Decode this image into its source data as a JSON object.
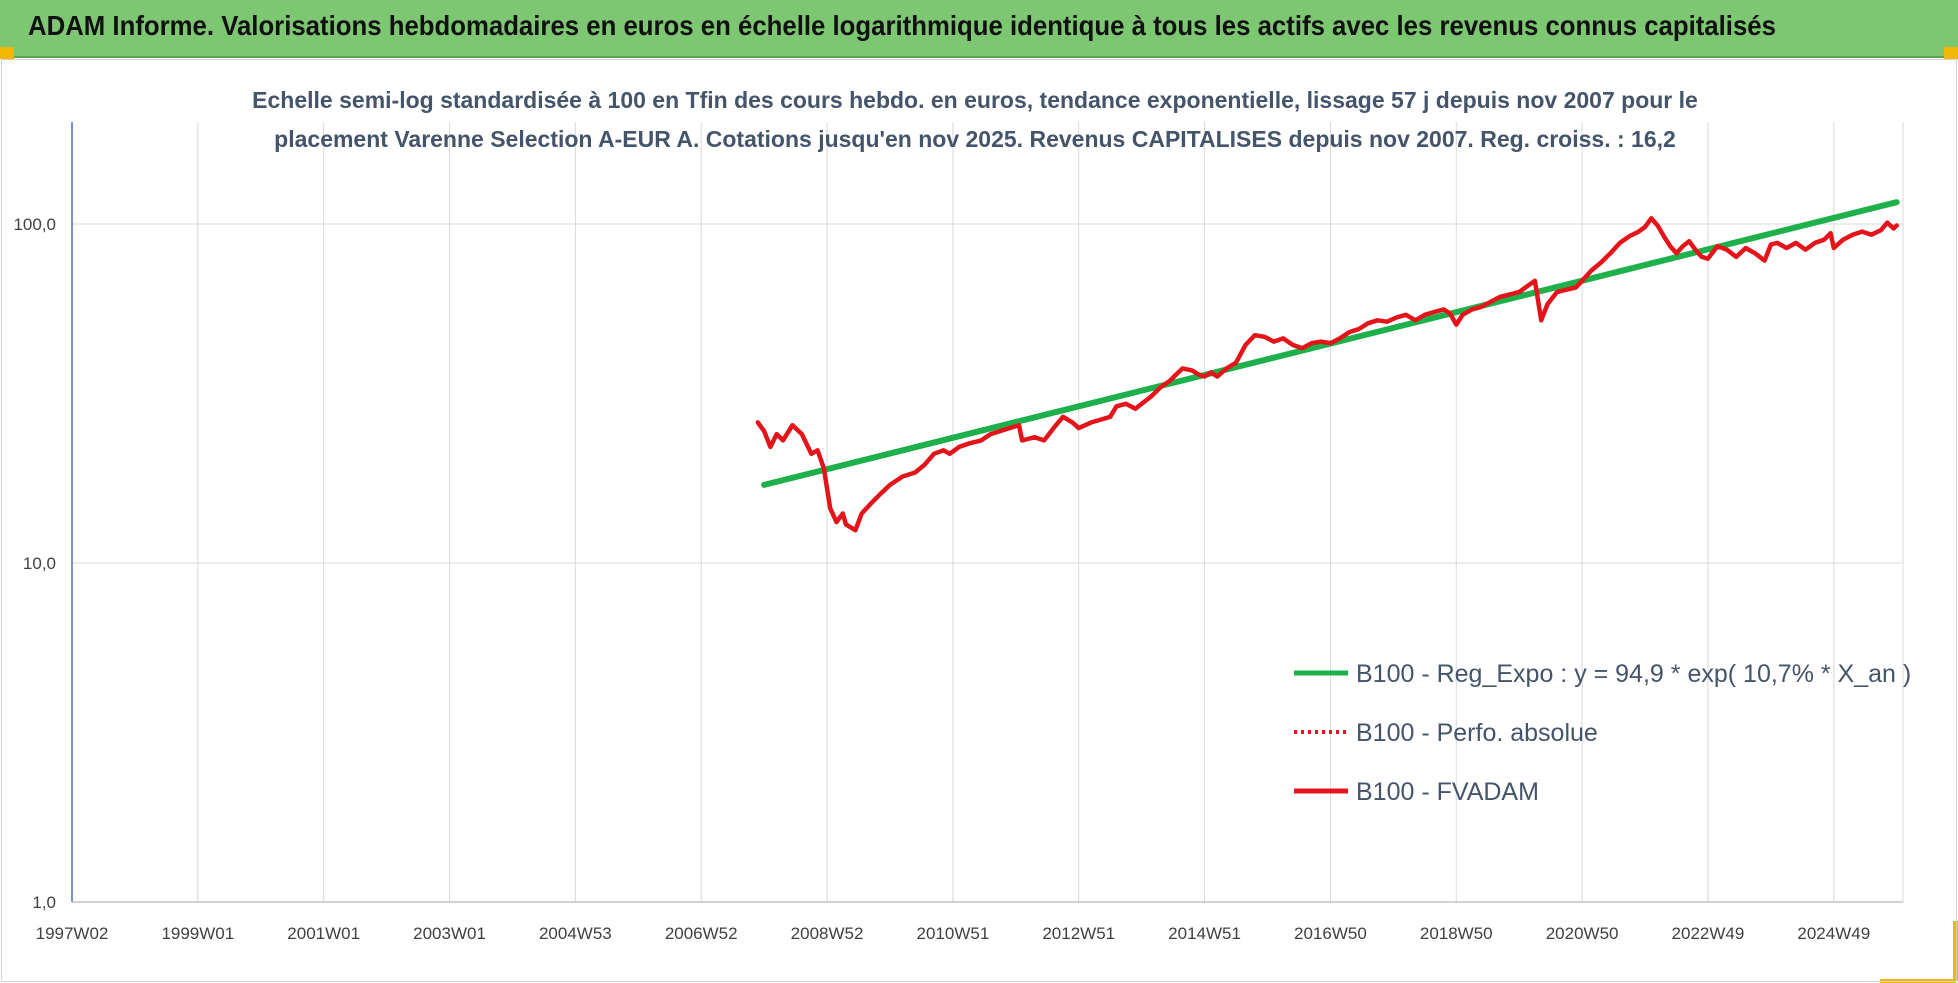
{
  "banner": {
    "title": "ADAM Informe. Valorisations hebdomadaires en euros en échelle logarithmique identique à tous les actifs avec les revenus connus capitalisés"
  },
  "colors": {
    "banner": "#7dc672",
    "accent_corner": "#f2b705",
    "trend_line": "#1db04b",
    "series_line": "#e3151a",
    "title_text": "#44546a"
  },
  "chart_data": {
    "type": "line",
    "title_lines": [
      "Echelle semi-log standardisée à 100 en Tfin des cours hebdo. en euros, tendance exponentielle, lissage 57 j depuis nov 2007 pour le",
      "placement Varenne Selection A-EUR A. Cotations jusqu'en nov 2025. Revenus CAPITALISES depuis nov 2007. Reg. croiss. : 16,2"
    ],
    "y_scale": "log",
    "ylim": [
      1,
      200
    ],
    "y_ticks": [
      {
        "value": 1,
        "label": "1,0"
      },
      {
        "value": 10,
        "label": "10,0"
      },
      {
        "value": 100,
        "label": "100,0"
      }
    ],
    "x_unit": "year",
    "xlim": [
      1997.0,
      2026.1
    ],
    "x_ticks": [
      {
        "value": 1997.0,
        "label": "1997W02"
      },
      {
        "value": 1999.0,
        "label": "1999W01"
      },
      {
        "value": 2001.0,
        "label": "2001W01"
      },
      {
        "value": 2003.0,
        "label": "2003W01"
      },
      {
        "value": 2005.0,
        "label": "2004W53"
      },
      {
        "value": 2007.0,
        "label": "2006W52"
      },
      {
        "value": 2009.0,
        "label": "2008W52"
      },
      {
        "value": 2011.0,
        "label": "2010W51"
      },
      {
        "value": 2013.0,
        "label": "2012W51"
      },
      {
        "value": 2015.0,
        "label": "2014W51"
      },
      {
        "value": 2017.0,
        "label": "2016W50"
      },
      {
        "value": 2019.0,
        "label": "2018W50"
      },
      {
        "value": 2021.0,
        "label": "2020W50"
      },
      {
        "value": 2023.0,
        "label": "2022W49"
      },
      {
        "value": 2025.0,
        "label": "2024W49"
      }
    ],
    "grid": true,
    "legend_position": "bottom-right",
    "series": [
      {
        "name": "B100 - Reg_Expo : y = 94,9 * exp( 10,7% *  X_an )",
        "style": "solid",
        "color": "#1db04b",
        "points": [
          [
            2008.0,
            17.0
          ],
          [
            2026.0,
            116.0
          ]
        ]
      },
      {
        "name": "B100 - Perfo. absolue",
        "style": "dotted",
        "color": "#e3151a",
        "points": []
      },
      {
        "name": "B100 - FVADAM",
        "style": "solid",
        "color": "#e3151a",
        "points": [
          [
            2007.9,
            26.0
          ],
          [
            2008.0,
            24.5
          ],
          [
            2008.1,
            22.0
          ],
          [
            2008.2,
            24.0
          ],
          [
            2008.3,
            23.0
          ],
          [
            2008.45,
            25.5
          ],
          [
            2008.6,
            24.0
          ],
          [
            2008.75,
            21.0
          ],
          [
            2008.85,
            21.5
          ],
          [
            2008.95,
            19.0
          ],
          [
            2009.05,
            14.5
          ],
          [
            2009.15,
            13.2
          ],
          [
            2009.25,
            14.0
          ],
          [
            2009.3,
            13.0
          ],
          [
            2009.45,
            12.5
          ],
          [
            2009.55,
            14.0
          ],
          [
            2009.7,
            15.0
          ],
          [
            2009.85,
            16.0
          ],
          [
            2010.0,
            17.0
          ],
          [
            2010.2,
            18.0
          ],
          [
            2010.4,
            18.5
          ],
          [
            2010.55,
            19.5
          ],
          [
            2010.7,
            21.0
          ],
          [
            2010.85,
            21.5
          ],
          [
            2010.95,
            21.0
          ],
          [
            2011.1,
            22.0
          ],
          [
            2011.25,
            22.5
          ],
          [
            2011.45,
            23.0
          ],
          [
            2011.6,
            24.0
          ],
          [
            2011.75,
            24.5
          ],
          [
            2011.9,
            25.0
          ],
          [
            2012.05,
            25.5
          ],
          [
            2012.1,
            23.0
          ],
          [
            2012.3,
            23.5
          ],
          [
            2012.45,
            23.0
          ],
          [
            2012.6,
            25.0
          ],
          [
            2012.75,
            27.0
          ],
          [
            2012.9,
            26.0
          ],
          [
            2013.0,
            25.0
          ],
          [
            2013.2,
            26.0
          ],
          [
            2013.35,
            26.5
          ],
          [
            2013.5,
            27.0
          ],
          [
            2013.6,
            29.0
          ],
          [
            2013.75,
            29.5
          ],
          [
            2013.9,
            28.5
          ],
          [
            2014.0,
            29.5
          ],
          [
            2014.15,
            31.0
          ],
          [
            2014.3,
            33.0
          ],
          [
            2014.45,
            34.5
          ],
          [
            2014.55,
            36.0
          ],
          [
            2014.65,
            37.5
          ],
          [
            2014.8,
            37.0
          ],
          [
            2014.9,
            36.0
          ],
          [
            2015.0,
            35.5
          ],
          [
            2015.1,
            36.5
          ],
          [
            2015.2,
            35.5
          ],
          [
            2015.35,
            37.5
          ],
          [
            2015.5,
            39.0
          ],
          [
            2015.65,
            44.0
          ],
          [
            2015.8,
            47.0
          ],
          [
            2015.95,
            46.5
          ],
          [
            2016.1,
            45.0
          ],
          [
            2016.25,
            46.0
          ],
          [
            2016.4,
            44.0
          ],
          [
            2016.55,
            43.0
          ],
          [
            2016.7,
            44.5
          ],
          [
            2016.85,
            45.0
          ],
          [
            2017.0,
            44.5
          ],
          [
            2017.15,
            46.0
          ],
          [
            2017.3,
            48.0
          ],
          [
            2017.45,
            49.0
          ],
          [
            2017.6,
            51.0
          ],
          [
            2017.75,
            52.0
          ],
          [
            2017.9,
            51.5
          ],
          [
            2018.05,
            53.0
          ],
          [
            2018.2,
            54.0
          ],
          [
            2018.35,
            52.0
          ],
          [
            2018.5,
            54.0
          ],
          [
            2018.65,
            55.0
          ],
          [
            2018.8,
            56.0
          ],
          [
            2018.9,
            54.5
          ],
          [
            2019.0,
            50.5
          ],
          [
            2019.1,
            54.0
          ],
          [
            2019.25,
            56.0
          ],
          [
            2019.4,
            57.0
          ],
          [
            2019.55,
            59.0
          ],
          [
            2019.7,
            61.0
          ],
          [
            2019.85,
            62.0
          ],
          [
            2020.0,
            63.0
          ],
          [
            2020.15,
            66.0
          ],
          [
            2020.25,
            68.0
          ],
          [
            2020.35,
            52.0
          ],
          [
            2020.45,
            58.0
          ],
          [
            2020.6,
            63.0
          ],
          [
            2020.75,
            64.0
          ],
          [
            2020.9,
            65.0
          ],
          [
            2021.0,
            68.0
          ],
          [
            2021.15,
            73.0
          ],
          [
            2021.3,
            77.0
          ],
          [
            2021.45,
            82.0
          ],
          [
            2021.6,
            88.0
          ],
          [
            2021.75,
            92.0
          ],
          [
            2021.9,
            95.0
          ],
          [
            2022.0,
            98.0
          ],
          [
            2022.1,
            104.0
          ],
          [
            2022.2,
            99.0
          ],
          [
            2022.3,
            92.0
          ],
          [
            2022.4,
            86.0
          ],
          [
            2022.5,
            82.0
          ],
          [
            2022.6,
            86.0
          ],
          [
            2022.7,
            89.0
          ],
          [
            2022.8,
            84.0
          ],
          [
            2022.9,
            80.0
          ],
          [
            2023.0,
            79.0
          ],
          [
            2023.15,
            86.0
          ],
          [
            2023.3,
            84.0
          ],
          [
            2023.45,
            80.0
          ],
          [
            2023.6,
            85.0
          ],
          [
            2023.75,
            82.0
          ],
          [
            2023.9,
            78.0
          ],
          [
            2024.0,
            87.0
          ],
          [
            2024.1,
            88.0
          ],
          [
            2024.25,
            85.0
          ],
          [
            2024.4,
            88.0
          ],
          [
            2024.55,
            84.0
          ],
          [
            2024.7,
            88.0
          ],
          [
            2024.85,
            90.0
          ],
          [
            2024.95,
            94.0
          ],
          [
            2025.0,
            85.0
          ],
          [
            2025.15,
            90.0
          ],
          [
            2025.3,
            93.0
          ],
          [
            2025.45,
            95.0
          ],
          [
            2025.6,
            93.0
          ],
          [
            2025.75,
            96.0
          ],
          [
            2025.85,
            101.0
          ],
          [
            2025.95,
            97.0
          ],
          [
            2026.0,
            99.0
          ]
        ]
      }
    ]
  }
}
